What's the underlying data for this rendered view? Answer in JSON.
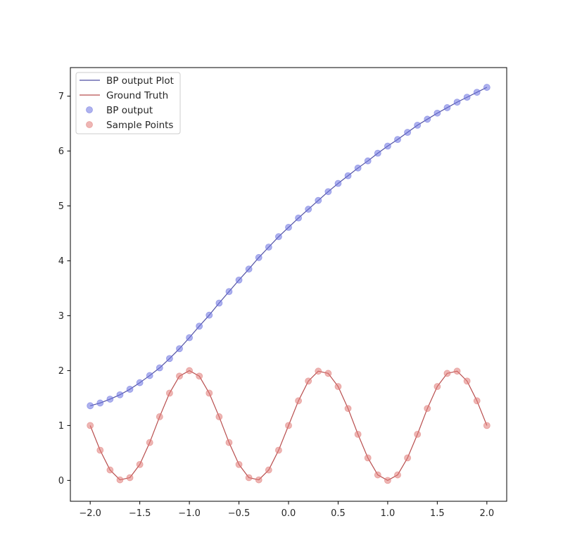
{
  "chart_data": {
    "type": "line",
    "title": "",
    "xlabel": "",
    "ylabel": "",
    "xlim": [
      -2.2,
      2.2
    ],
    "ylim": [
      -0.38,
      7.52
    ],
    "x_ticks": [
      -2.0,
      -1.5,
      -1.0,
      -0.5,
      0.0,
      0.5,
      1.0,
      1.5,
      2.0
    ],
    "x_tick_labels": [
      "−2.0",
      "−1.5",
      "−1.0",
      "−0.5",
      "0.0",
      "0.5",
      "1.0",
      "1.5",
      "2.0"
    ],
    "y_ticks": [
      0,
      1,
      2,
      3,
      4,
      5,
      6,
      7
    ],
    "y_tick_labels": [
      "0",
      "1",
      "2",
      "3",
      "4",
      "5",
      "6",
      "7"
    ],
    "grid": false,
    "legend_position": "top-left",
    "x": [
      -2.0,
      -1.9,
      -1.8,
      -1.7,
      -1.6,
      -1.5,
      -1.4,
      -1.3,
      -1.2,
      -1.1,
      -1.0,
      -0.9,
      -0.8,
      -0.7,
      -0.6,
      -0.5,
      -0.4,
      -0.3,
      -0.2,
      -0.1,
      0.0,
      0.1,
      0.2,
      0.3,
      0.4,
      0.5,
      0.6,
      0.7,
      0.8,
      0.9,
      1.0,
      1.1,
      1.2,
      1.3,
      1.4,
      1.5,
      1.6,
      1.7,
      1.8,
      1.9,
      2.0
    ],
    "series": [
      {
        "name": "BP output Plot",
        "kind": "line",
        "color": "#3d3d99",
        "values": [
          1.36,
          1.41,
          1.48,
          1.56,
          1.66,
          1.78,
          1.91,
          2.05,
          2.22,
          2.4,
          2.6,
          2.81,
          3.01,
          3.23,
          3.44,
          3.65,
          3.85,
          4.06,
          4.25,
          4.44,
          4.61,
          4.78,
          4.94,
          5.1,
          5.26,
          5.41,
          5.55,
          5.69,
          5.82,
          5.96,
          6.09,
          6.21,
          6.34,
          6.47,
          6.58,
          6.69,
          6.79,
          6.89,
          6.98,
          7.07,
          7.16
        ]
      },
      {
        "name": "Ground Truth",
        "kind": "line",
        "color": "#b03a3a",
        "values": [
          1.0,
          0.55,
          0.19,
          0.01,
          0.05,
          0.29,
          0.69,
          1.16,
          1.59,
          1.9,
          2.0,
          1.9,
          1.59,
          1.16,
          0.69,
          0.29,
          0.05,
          0.01,
          0.19,
          0.55,
          1.0,
          1.45,
          1.81,
          1.99,
          1.95,
          1.71,
          1.31,
          0.84,
          0.41,
          0.1,
          0.0,
          0.1,
          0.41,
          0.84,
          1.31,
          1.71,
          1.95,
          1.99,
          1.81,
          1.45,
          1.0
        ]
      },
      {
        "name": "BP output",
        "kind": "scatter",
        "color": "#6b72e0",
        "values": [
          1.36,
          1.41,
          1.48,
          1.56,
          1.66,
          1.78,
          1.91,
          2.05,
          2.22,
          2.4,
          2.6,
          2.81,
          3.01,
          3.23,
          3.44,
          3.65,
          3.85,
          4.06,
          4.25,
          4.44,
          4.61,
          4.78,
          4.94,
          5.1,
          5.26,
          5.41,
          5.55,
          5.69,
          5.82,
          5.96,
          6.09,
          6.21,
          6.34,
          6.47,
          6.58,
          6.69,
          6.79,
          6.89,
          6.98,
          7.07,
          7.16
        ]
      },
      {
        "name": "Sample Points",
        "kind": "scatter",
        "color": "#e07a76",
        "values": [
          1.0,
          0.55,
          0.19,
          0.01,
          0.05,
          0.29,
          0.69,
          1.16,
          1.59,
          1.9,
          2.0,
          1.9,
          1.59,
          1.16,
          0.69,
          0.29,
          0.05,
          0.01,
          0.19,
          0.55,
          1.0,
          1.45,
          1.81,
          1.99,
          1.95,
          1.71,
          1.31,
          0.84,
          0.41,
          0.1,
          0.0,
          0.1,
          0.41,
          0.84,
          1.31,
          1.71,
          1.95,
          1.99,
          1.81,
          1.45,
          1.0
        ]
      }
    ]
  }
}
